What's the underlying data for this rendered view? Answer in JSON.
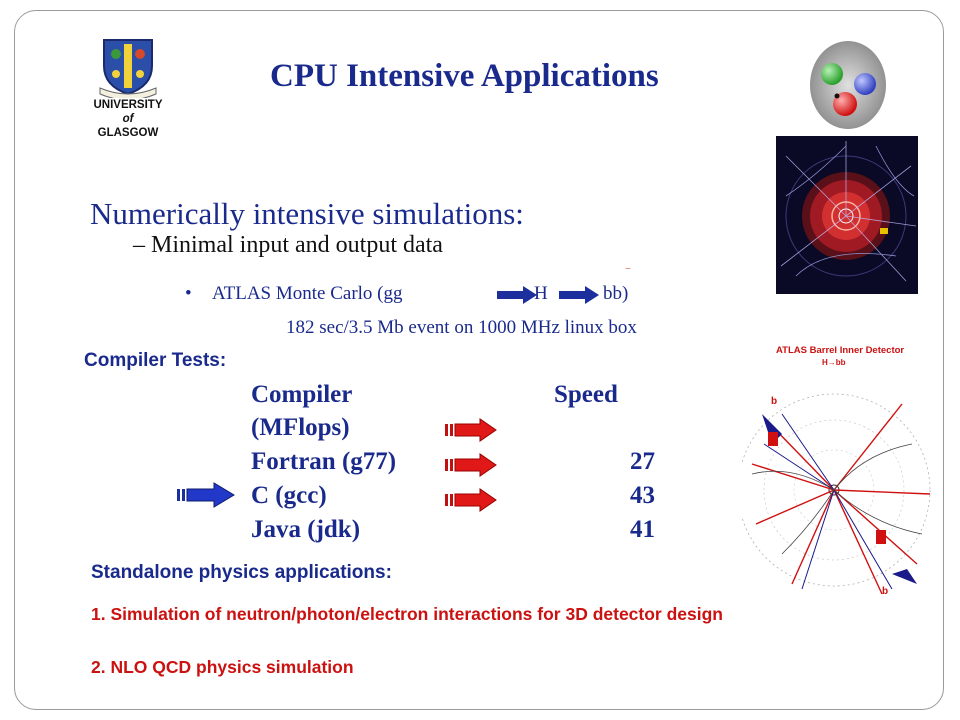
{
  "slide": {
    "title": "CPU Intensive  Applications",
    "university": {
      "line1": "UNIVERSITY",
      "line2": "of",
      "line3": "GLASGOW"
    },
    "heading": "Numerically intensive simulations:",
    "subheading": "– Minimal input and output data",
    "atlas": {
      "bullet": "•",
      "prefix": "ATLAS Monte Carlo (gg",
      "h": "H",
      "bb": "bb)",
      "bar": "‾"
    },
    "performance": "182 sec/3.5 Mb event on 1000 MHz linux box",
    "compiler_tests_label": "Compiler Tests:",
    "table": {
      "header_compiler": "Compiler",
      "header_speed": "Speed",
      "units": "(MFlops)",
      "rows": [
        {
          "compiler": "Fortran (g77)",
          "speed": "27"
        },
        {
          "compiler": "C (gcc)",
          "speed": "43"
        },
        {
          "compiler": "Java (jdk)",
          "speed": "41"
        }
      ]
    },
    "standalone_heading": "Standalone physics applications:",
    "items": [
      "1. Simulation of neutron/photon/electron interactions for 3D detector design",
      "2. NLO QCD physics simulation"
    ],
    "detector_caption": {
      "title": "ATLAS Barrel Inner Detector",
      "process": "H→bb",
      "b": "b"
    }
  }
}
